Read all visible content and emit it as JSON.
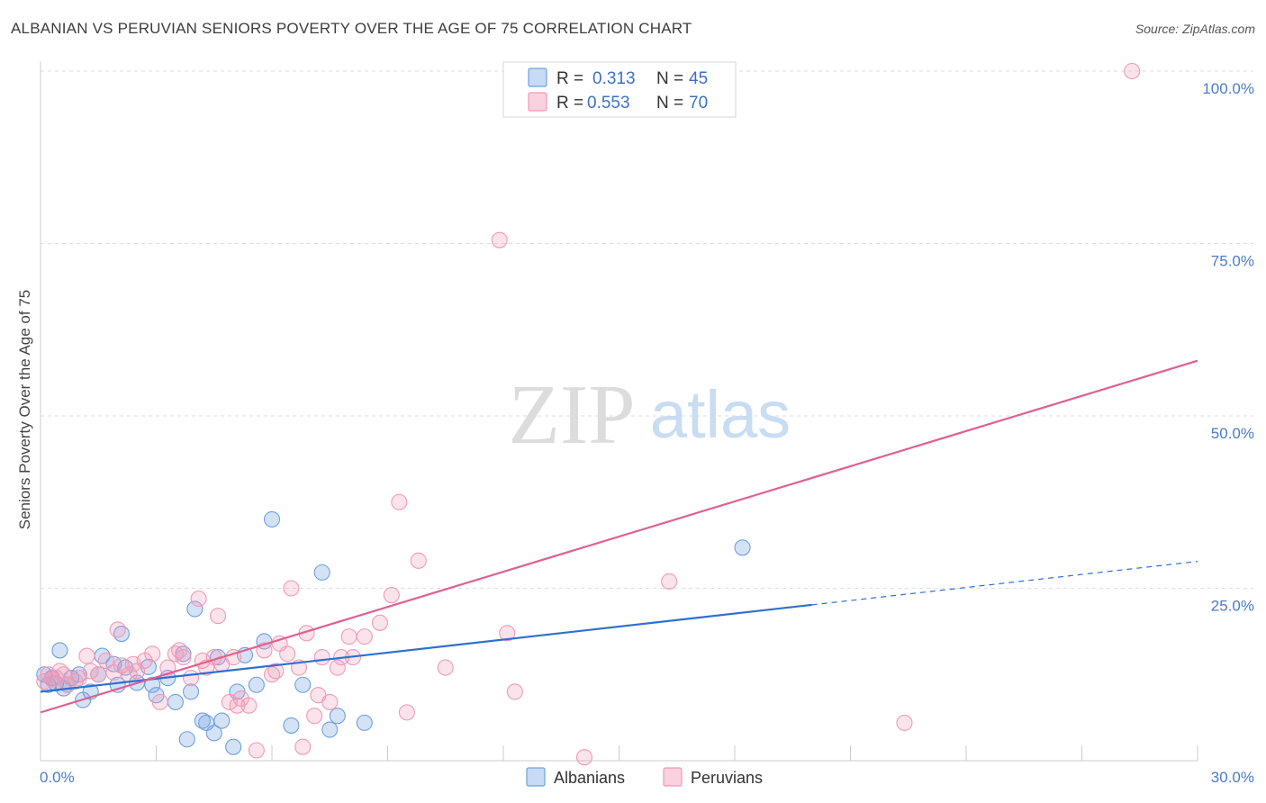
{
  "title": "ALBANIAN VS PERUVIAN SENIORS POVERTY OVER THE AGE OF 75 CORRELATION CHART",
  "source": "Source: ZipAtlas.com",
  "watermark": {
    "zip": "ZIP",
    "atlas": "atlas"
  },
  "chart_data": {
    "type": "scatter",
    "title": "ALBANIAN VS PERUVIAN SENIORS POVERTY OVER THE AGE OF 75 CORRELATION CHART",
    "xlabel": "",
    "ylabel": "Seniors Poverty Over the Age of 75",
    "xlim": [
      0,
      30
    ],
    "ylim": [
      0,
      100
    ],
    "x_tick_labels": {
      "min": "0.0%",
      "max": "30.0%"
    },
    "y_ticks": [
      {
        "value": 100,
        "label": "100.0%"
      },
      {
        "value": 75,
        "label": "75.0%"
      },
      {
        "value": 50,
        "label": "50.0%"
      },
      {
        "value": 25,
        "label": "25.0%"
      }
    ],
    "grid": true,
    "legend_position": "top-center",
    "legend": [
      {
        "r_label": "R =",
        "r": "0.313",
        "n_label": "N =",
        "n": "45",
        "color": "#6fa0e0"
      },
      {
        "r_label": "R =",
        "r": "0.553",
        "n_label": "N =",
        "n": "70",
        "color": "#f09ab6"
      }
    ],
    "series": [
      {
        "name": "Albanians",
        "color": "#6fa0e0",
        "line_color": "#2f6fd0",
        "trend": {
          "x0": 0,
          "y0": 10.0,
          "x1": 20.0,
          "y1": 22.6,
          "x_ext": 30,
          "y_ext": 28.9
        },
        "x": [
          0.1,
          0.2,
          0.3,
          0.4,
          0.5,
          0.6,
          0.7,
          0.8,
          1.0,
          1.1,
          1.3,
          1.5,
          1.6,
          1.9,
          2.0,
          2.1,
          2.2,
          2.5,
          2.8,
          2.9,
          3.0,
          3.3,
          3.5,
          3.7,
          3.8,
          3.9,
          4.0,
          4.2,
          4.3,
          4.5,
          4.6,
          4.7,
          5.0,
          5.1,
          5.3,
          5.6,
          5.8,
          6.0,
          6.5,
          6.8,
          7.3,
          7.5,
          7.7,
          8.4,
          18.2
        ],
        "y": [
          12.5,
          11.0,
          12.0,
          11.2,
          16.0,
          10.5,
          11.0,
          12.0,
          12.5,
          8.8,
          10.0,
          12.5,
          15.2,
          14.0,
          11.0,
          18.4,
          13.5,
          11.3,
          13.6,
          11.0,
          9.5,
          12.0,
          8.5,
          15.5,
          3.1,
          10.0,
          22.0,
          5.8,
          5.5,
          4.0,
          15.0,
          5.8,
          2.0,
          10.0,
          15.3,
          11.0,
          17.3,
          35.0,
          5.1,
          11.0,
          27.3,
          4.5,
          6.5,
          5.5,
          30.9
        ]
      },
      {
        "name": "Peruvians",
        "color": "#f09ab6",
        "line_color": "#e0608f",
        "trend": {
          "x0": 0,
          "y0": 7.0,
          "x1": 30,
          "y1": 58.0
        },
        "x": [
          0.1,
          0.2,
          0.3,
          0.4,
          0.5,
          0.6,
          0.7,
          0.9,
          1.0,
          1.2,
          1.3,
          1.5,
          1.7,
          1.9,
          2.0,
          2.1,
          2.3,
          2.4,
          2.5,
          2.7,
          2.9,
          3.1,
          3.3,
          3.5,
          3.6,
          3.7,
          3.9,
          4.1,
          4.2,
          4.3,
          4.5,
          4.6,
          4.7,
          4.9,
          5.0,
          5.1,
          5.2,
          5.4,
          5.6,
          5.8,
          6.0,
          6.1,
          6.2,
          6.4,
          6.5,
          6.7,
          6.8,
          6.9,
          7.1,
          7.2,
          7.3,
          7.5,
          7.7,
          7.8,
          8.0,
          8.1,
          8.4,
          8.8,
          9.1,
          9.3,
          9.5,
          9.8,
          10.5,
          11.9,
          12.1,
          12.3,
          14.1,
          16.3,
          22.4,
          28.3
        ],
        "y": [
          11.5,
          12.5,
          11.8,
          12.0,
          13.0,
          12.5,
          11.0,
          11.5,
          12.0,
          15.2,
          13.0,
          12.5,
          14.5,
          12.8,
          19.0,
          13.8,
          12.5,
          14.0,
          13.0,
          14.5,
          15.5,
          8.5,
          13.5,
          15.5,
          16.0,
          15.0,
          12.0,
          23.5,
          14.5,
          13.5,
          15.0,
          21.0,
          14.0,
          8.5,
          15.0,
          8.0,
          9.0,
          8.0,
          1.5,
          16.0,
          12.5,
          13.0,
          17.0,
          15.5,
          25.0,
          13.5,
          2.0,
          18.5,
          6.5,
          9.5,
          15.0,
          8.5,
          13.5,
          15.0,
          18.0,
          15.0,
          18.0,
          20.0,
          24.0,
          37.5,
          7.0,
          29.0,
          13.5,
          75.5,
          18.5,
          10.0,
          0.5,
          26.0,
          5.5,
          100.0
        ]
      }
    ]
  },
  "bottom_legend": [
    {
      "label": "Albanians",
      "color": "#6fa0e0"
    },
    {
      "label": "Peruvians",
      "color": "#f09ab6"
    }
  ]
}
